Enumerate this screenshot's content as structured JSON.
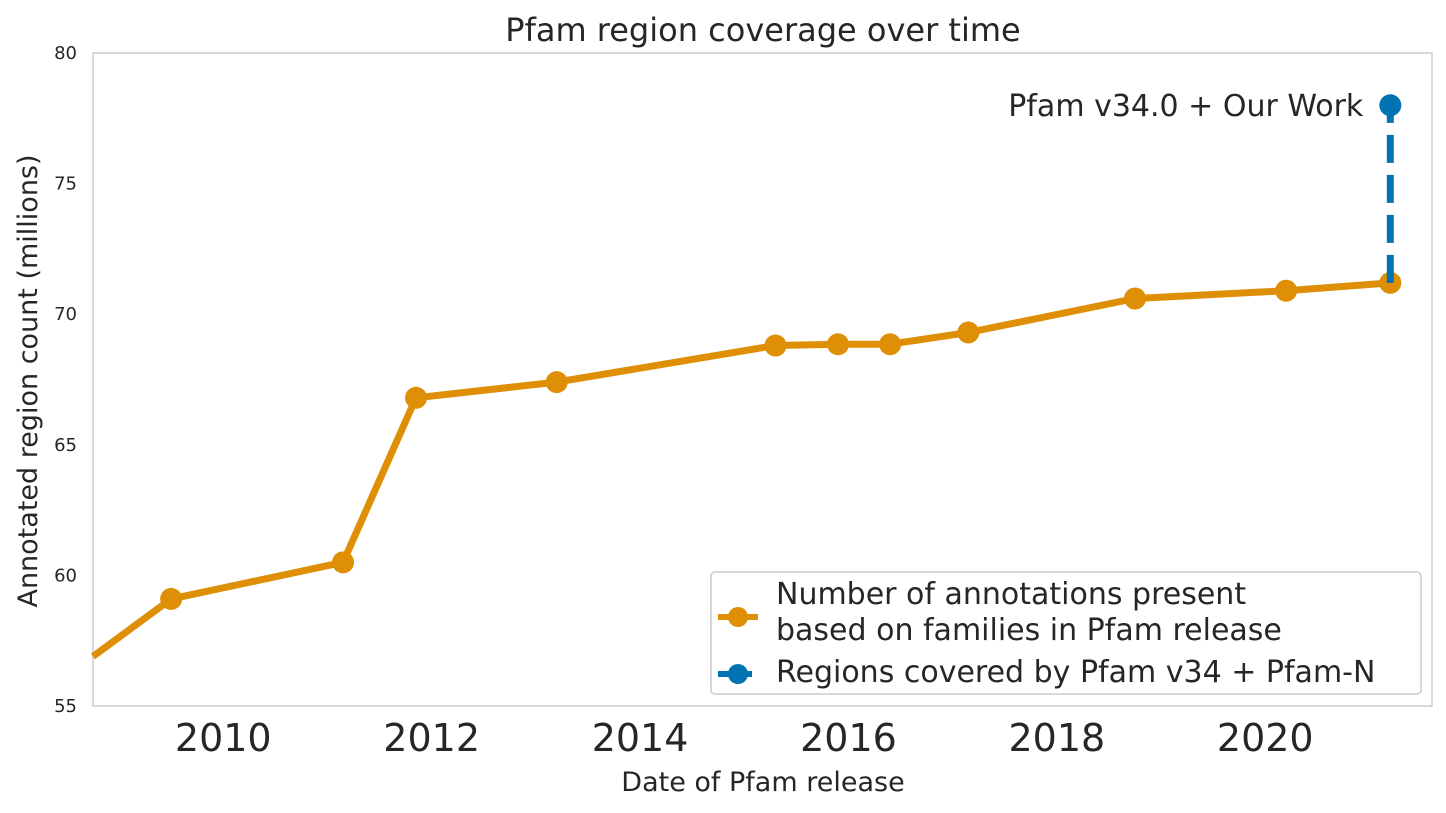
{
  "chart_data": {
    "type": "line",
    "title": "Pfam region coverage over time",
    "xlabel": "Date of Pfam release",
    "ylabel": "Annotated region count (millions)",
    "xlim": [
      2008.75,
      2021.6
    ],
    "ylim": [
      55,
      80
    ],
    "x_ticks": [
      2010,
      2012,
      2014,
      2016,
      2018,
      2020
    ],
    "x_tick_labels": [
      "2010",
      "2012",
      "2014",
      "2016",
      "2018",
      "2020"
    ],
    "y_ticks": [
      55,
      60,
      65,
      70,
      75,
      80
    ],
    "y_tick_labels": [
      "55",
      "60",
      "65",
      "70",
      "75",
      "80"
    ],
    "grid": false,
    "legend_position": "lower-right",
    "series": [
      {
        "name": "Number of annotations present based on families in Pfam release",
        "legend_lines": [
          "Number of annotations present",
          "based on families in Pfam release"
        ],
        "color": "#de8f05",
        "style": "solid",
        "x": [
          2008.75,
          2009.5,
          2011.15,
          2011.85,
          2013.2,
          2015.3,
          2015.9,
          2016.4,
          2017.15,
          2018.75,
          2020.2,
          2021.2
        ],
        "y": [
          56.9,
          59.1,
          60.5,
          66.8,
          67.4,
          68.8,
          68.85,
          68.85,
          69.3,
          70.6,
          70.9,
          71.2
        ],
        "markers": [
          false,
          true,
          true,
          true,
          true,
          true,
          true,
          true,
          true,
          true,
          true,
          true
        ]
      },
      {
        "name": "Regions covered by Pfam v34 + Pfam-N",
        "legend_lines": [
          "Regions covered by Pfam v34 + Pfam-N"
        ],
        "color": "#0173b2",
        "style": "dashed",
        "x": [
          2021.2,
          2021.2
        ],
        "y": [
          71.2,
          78.0
        ],
        "markers": [
          false,
          true
        ]
      }
    ],
    "annotations": [
      {
        "text": "Pfam v34.0 + Our Work",
        "x": 2021.2,
        "y": 78.0
      }
    ]
  }
}
